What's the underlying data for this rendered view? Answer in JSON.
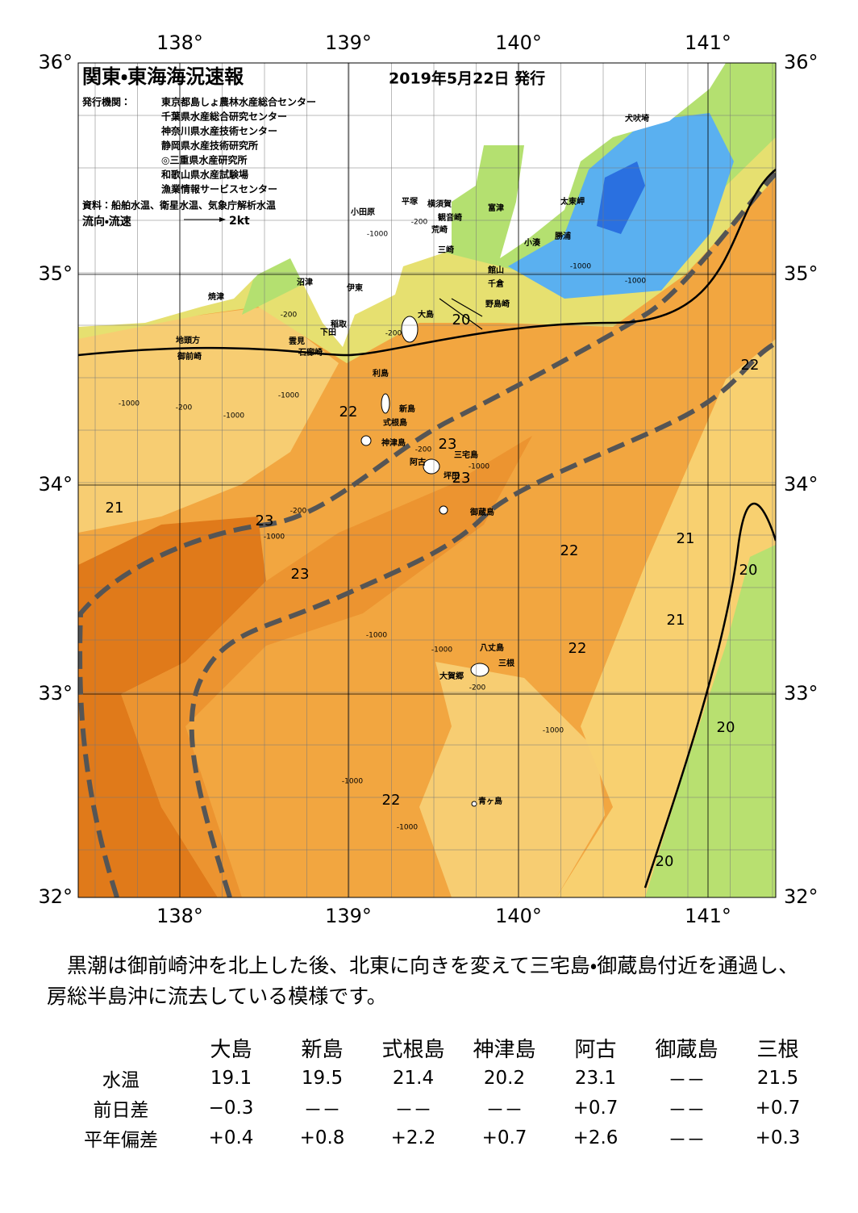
{
  "header": {
    "title": "関東・東海海況速報",
    "date": "2019年5月22日 発行"
  },
  "issuers": {
    "label": "発行機関：",
    "items": [
      "東京都島しょ農林水産総合センター",
      "千葉県水産総合研究センター",
      "神奈川県水産技術センター",
      "静岡県水産技術研究所",
      "◎三重県水産研究所",
      "和歌山県水産試験場",
      "漁業情報サービスセンター"
    ]
  },
  "source": "資料：船舶水温、衛星水温、気象庁解析水温",
  "legend": {
    "label": "流向・流速",
    "speed": "2kt"
  },
  "axes": {
    "lon": [
      "138°",
      "139°",
      "140°",
      "141°"
    ],
    "lat": [
      "36°",
      "35°",
      "34°",
      "33°",
      "32°"
    ]
  },
  "places": [
    "犬吠埼",
    "太東岬",
    "勝浦",
    "小湊",
    "富津",
    "横須賀",
    "観音崎",
    "平塚",
    "小田原",
    "荒崎",
    "三崎",
    "館山",
    "千倉",
    "野島崎",
    "大島",
    "沼津",
    "伊東",
    "焼津",
    "稲取",
    "下田",
    "雲見",
    "石廊崎",
    "地頭方",
    "御前崎",
    "利島",
    "新島",
    "式根島",
    "神津島",
    "三宅島",
    "阿古",
    "坪田",
    "御蔵島",
    "八丈島",
    "三根",
    "大賀郷",
    "青ヶ島"
  ],
  "temperature_labels": [
    "20",
    "22",
    "22",
    "23",
    "23",
    "21",
    "23",
    "22",
    "21",
    "20",
    "23",
    "21",
    "22",
    "20",
    "22",
    "20"
  ],
  "depth_labels": [
    "-200",
    "-1000",
    "-200",
    "-200",
    "-1000",
    "-1000",
    "-1000",
    "-200",
    "-1000",
    "-1000",
    "-200",
    "-1000",
    "-200",
    "-1000",
    "-1000",
    "-1000",
    "-200",
    "-1000",
    "-1000",
    "-1000"
  ],
  "description": "　黒潮は御前崎沖を北上した後、北東に向きを変えて三宅島・御蔵島付近を通過し、房総半島沖に流去している模様です。",
  "table": {
    "columns": [
      "大島",
      "新島",
      "式根島",
      "神津島",
      "阿古",
      "御蔵島",
      "三根"
    ],
    "rows": [
      {
        "label": "水温",
        "values": [
          "19.1",
          "19.5",
          "21.4",
          "20.2",
          "23.1",
          "－－",
          "21.5"
        ]
      },
      {
        "label": "前日差",
        "values": [
          "−0.3",
          "－－",
          "－－",
          "－－",
          "+0.7",
          "－－",
          "+0.7"
        ]
      },
      {
        "label": "平年偏差",
        "values": [
          "+0.4",
          "+0.8",
          "+2.2",
          "+0.7",
          "+2.6",
          "－－",
          "+0.3"
        ]
      }
    ]
  }
}
